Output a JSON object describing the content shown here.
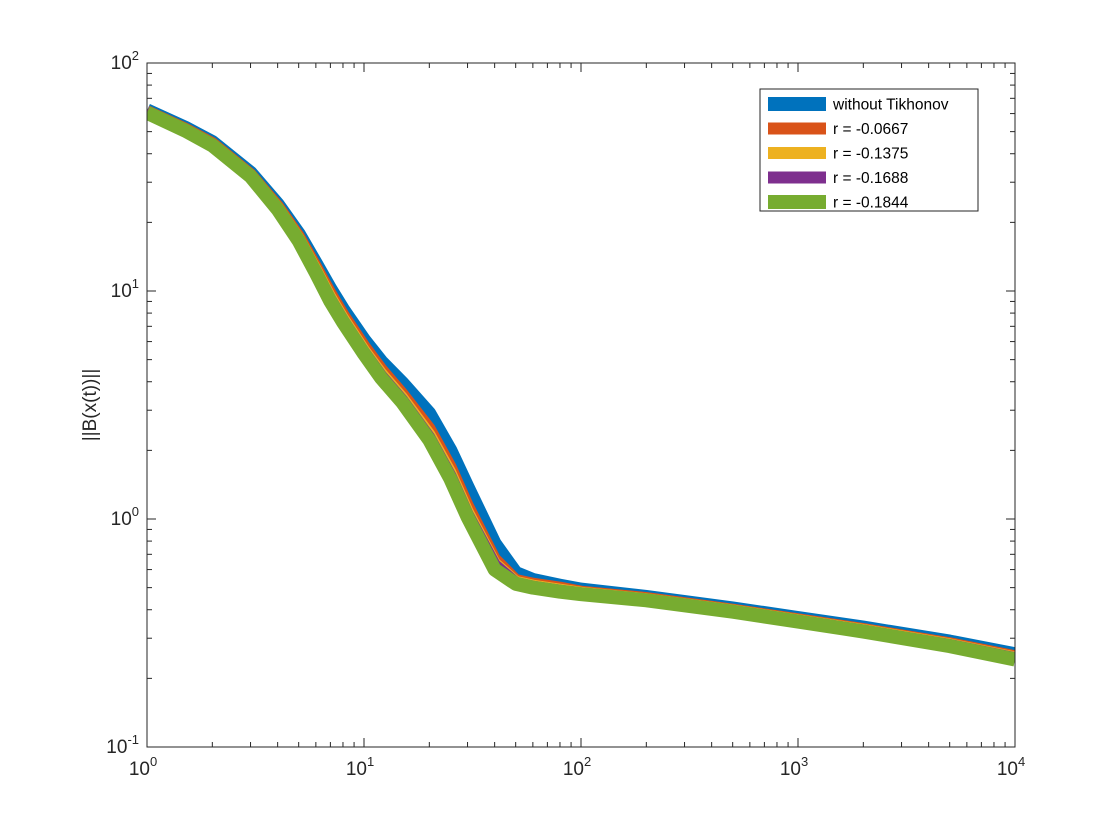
{
  "chart_data": {
    "type": "line",
    "title": "",
    "xlabel": "",
    "ylabel": "||B(x(t))||",
    "xscale": "log",
    "yscale": "log",
    "xlim": [
      1,
      10000
    ],
    "ylim": [
      0.1,
      100
    ],
    "grid": false,
    "legend_position": "top-right",
    "x_ticks": [
      {
        "base": "10",
        "exp": "0",
        "value": 1
      },
      {
        "base": "10",
        "exp": "1",
        "value": 10
      },
      {
        "base": "10",
        "exp": "2",
        "value": 100
      },
      {
        "base": "10",
        "exp": "3",
        "value": 1000
      },
      {
        "base": "10",
        "exp": "4",
        "value": 10000
      }
    ],
    "y_ticks": [
      {
        "base": "10",
        "exp": "-1",
        "value": 0.1
      },
      {
        "base": "10",
        "exp": "0",
        "value": 1
      },
      {
        "base": "10",
        "exp": "1",
        "value": 10
      },
      {
        "base": "10",
        "exp": "2",
        "value": 100
      }
    ],
    "x": [
      1,
      1.5,
      2,
      3,
      4,
      5,
      6,
      7,
      8,
      10,
      12,
      15,
      20,
      25,
      30,
      40,
      50,
      60,
      80,
      100,
      200,
      500,
      1000,
      2000,
      5000,
      10000
    ],
    "series": [
      {
        "name": "without Tikhonov",
        "color": "#0072BD",
        "width": 14,
        "values": [
          62,
          52,
          45,
          33,
          24,
          17.8,
          13.2,
          10.2,
          8.3,
          6.1,
          4.9,
          3.95,
          2.9,
          2.0,
          1.38,
          0.78,
          0.58,
          0.54,
          0.51,
          0.49,
          0.455,
          0.405,
          0.368,
          0.334,
          0.29,
          0.255
        ]
      },
      {
        "name": "r = -0.0667",
        "color": "#D95319",
        "width": 12,
        "values": [
          61.5,
          51.5,
          44.5,
          32.5,
          23.6,
          17.4,
          12.8,
          9.8,
          7.9,
          5.75,
          4.55,
          3.55,
          2.5,
          1.7,
          1.15,
          0.67,
          0.54,
          0.52,
          0.5,
          0.48,
          0.45,
          0.4,
          0.363,
          0.329,
          0.285,
          0.25
        ]
      },
      {
        "name": "r = -0.1375",
        "color": "#EDB120",
        "width": 12,
        "values": [
          61,
          51,
          44,
          32.2,
          23.2,
          17.0,
          12.4,
          9.4,
          7.6,
          5.5,
          4.35,
          3.4,
          2.35,
          1.6,
          1.08,
          0.64,
          0.53,
          0.51,
          0.49,
          0.475,
          0.445,
          0.397,
          0.36,
          0.326,
          0.282,
          0.247
        ]
      },
      {
        "name": "r = -0.1688",
        "color": "#7E2F8E",
        "width": 12,
        "values": [
          61,
          51,
          44,
          32,
          23.0,
          16.8,
          12.2,
          9.2,
          7.45,
          5.4,
          4.25,
          3.32,
          2.28,
          1.55,
          1.05,
          0.63,
          0.525,
          0.505,
          0.485,
          0.472,
          0.443,
          0.395,
          0.358,
          0.324,
          0.28,
          0.245
        ]
      },
      {
        "name": "r = -0.1844",
        "color": "#77AC30",
        "width": 14,
        "values": [
          60.5,
          50.5,
          43.5,
          31.8,
          22.8,
          16.6,
          12.0,
          9.0,
          7.3,
          5.3,
          4.15,
          3.25,
          2.22,
          1.5,
          1.02,
          0.6,
          0.52,
          0.5,
          0.48,
          0.468,
          0.44,
          0.392,
          0.355,
          0.321,
          0.277,
          0.242
        ]
      }
    ]
  }
}
